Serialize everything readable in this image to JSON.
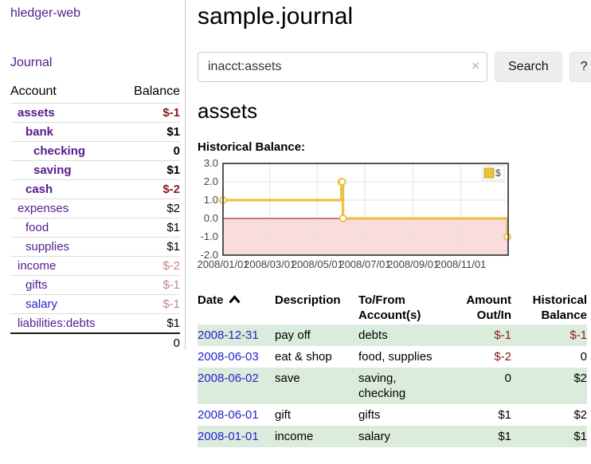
{
  "colors": {
    "purple": "#551a8b",
    "blue": "#2323cc",
    "darkred": "#8b1a1a",
    "salmon": "#c48585",
    "greenrow": "#dcecdc",
    "gold": "#edc240",
    "gold_dark": "#c9a21e",
    "pink_fill": "#fadcdc",
    "zero_line": "#8b0000",
    "grid": "#e3e3e3",
    "plot_border": "#545454",
    "tick_text": "#444444"
  },
  "app": {
    "title": "hledger-web"
  },
  "sidebar": {
    "journal_link": "Journal",
    "header": {
      "account": "Account",
      "balance": "Balance"
    },
    "accounts": [
      {
        "label": "assets",
        "depth": 1,
        "bold": true,
        "name_color": "purple",
        "balance": "$-1",
        "balance_style": "neg"
      },
      {
        "label": "bank",
        "depth": 2,
        "bold": true,
        "name_color": "purple",
        "balance": "$1",
        "balance_style": "pos"
      },
      {
        "label": "checking",
        "depth": 3,
        "bold": true,
        "name_color": "purple",
        "balance": "0",
        "balance_style": "pos"
      },
      {
        "label": "saving",
        "depth": 3,
        "bold": true,
        "name_color": "purple",
        "balance": "$1",
        "balance_style": "pos"
      },
      {
        "label": "cash",
        "depth": 2,
        "bold": true,
        "name_color": "purple",
        "balance": "$-2",
        "balance_style": "neg"
      },
      {
        "label": "expenses",
        "depth": 1,
        "bold": false,
        "name_color": "purple",
        "balance": "$2",
        "balance_style": "pos"
      },
      {
        "label": "food",
        "depth": 2,
        "bold": false,
        "name_color": "purple",
        "balance": "$1",
        "balance_style": "pos"
      },
      {
        "label": "supplies",
        "depth": 2,
        "bold": false,
        "name_color": "purple",
        "balance": "$1",
        "balance_style": "pos"
      },
      {
        "label": "income",
        "depth": 1,
        "bold": false,
        "name_color": "purple",
        "balance": "$-2",
        "balance_style": "negmuted"
      },
      {
        "label": "gifts",
        "depth": 2,
        "bold": false,
        "name_color": "purple",
        "balance": "$-1",
        "balance_style": "negmuted"
      },
      {
        "label": "salary",
        "depth": 2,
        "bold": false,
        "name_color": "blue",
        "balance": "$-1",
        "balance_style": "negmuted"
      },
      {
        "label": "liabilities:debts",
        "depth": 1,
        "bold": false,
        "name_color": "purple",
        "balance": "$1",
        "balance_style": "pos"
      }
    ],
    "total": "0"
  },
  "header": {
    "title": "sample.journal"
  },
  "search": {
    "value": "inacct:assets",
    "clear_icon": "×",
    "button_label": "Search",
    "help_label": "?"
  },
  "account_page": {
    "title": "assets",
    "chart_label": "Historical Balance:"
  },
  "chart_data": {
    "type": "line",
    "step": true,
    "title": "Historical Balance",
    "xlim": [
      "2008-01-01",
      "2009-01-01"
    ],
    "ylim": [
      -2,
      3
    ],
    "yticks": [
      "3.0",
      "2.0",
      "1.0",
      "0.0",
      "-1.0",
      "-2.0"
    ],
    "ytick_values": [
      3,
      2,
      1,
      0,
      -1,
      -2
    ],
    "xticks": [
      "2008/01/01",
      "2008/03/01",
      "2008/05/01",
      "2008/07/01",
      "2008/09/01",
      "2008/11/01"
    ],
    "xtick_dates": [
      "2008-01-01",
      "2008-03-01",
      "2008-05-01",
      "2008-07-01",
      "2008-09-01",
      "2008-11-01"
    ],
    "grid": true,
    "legend": {
      "position": "top-right",
      "entries": [
        {
          "label": "$",
          "color": "#edc240"
        }
      ]
    },
    "negative_region_shaded": true,
    "series": [
      {
        "name": "$",
        "color": "#edc240",
        "points": [
          {
            "x": "2008-01-01",
            "y": 1
          },
          {
            "x": "2008-06-01",
            "y": 2
          },
          {
            "x": "2008-06-02",
            "y": 2
          },
          {
            "x": "2008-06-03",
            "y": 0
          },
          {
            "x": "2008-12-31",
            "y": -1
          }
        ]
      }
    ]
  },
  "register_table": {
    "columns": [
      {
        "label": "Date",
        "align": "left",
        "sorted": true
      },
      {
        "label": "Description",
        "align": "left",
        "sorted": false
      },
      {
        "label": "To/From Account(s)",
        "align": "left",
        "sorted": false
      },
      {
        "label": "Amount Out/In",
        "align": "right",
        "sorted": false
      },
      {
        "label": "Historical Balance",
        "align": "right",
        "sorted": false
      }
    ],
    "rows": [
      {
        "date": "2008-12-31",
        "description": "pay off",
        "accounts": "debts",
        "amount": "$-1",
        "amount_negative": true,
        "balance": "$-1",
        "balance_negative": true,
        "green": true
      },
      {
        "date": "2008-06-03",
        "description": "eat & shop",
        "accounts": "food, supplies",
        "amount": "$-2",
        "amount_negative": true,
        "balance": "0",
        "balance_negative": false,
        "green": false
      },
      {
        "date": "2008-06-02",
        "description": "save",
        "accounts": "saving, checking",
        "amount": "0",
        "amount_negative": false,
        "balance": "$2",
        "balance_negative": false,
        "green": true
      },
      {
        "date": "2008-06-01",
        "description": "gift",
        "accounts": "gifts",
        "amount": "$1",
        "amount_negative": false,
        "balance": "$2",
        "balance_negative": false,
        "green": false
      },
      {
        "date": "2008-01-01",
        "description": "income",
        "accounts": "salary",
        "amount": "$1",
        "amount_negative": false,
        "balance": "$1",
        "balance_negative": false,
        "green": true
      }
    ]
  }
}
